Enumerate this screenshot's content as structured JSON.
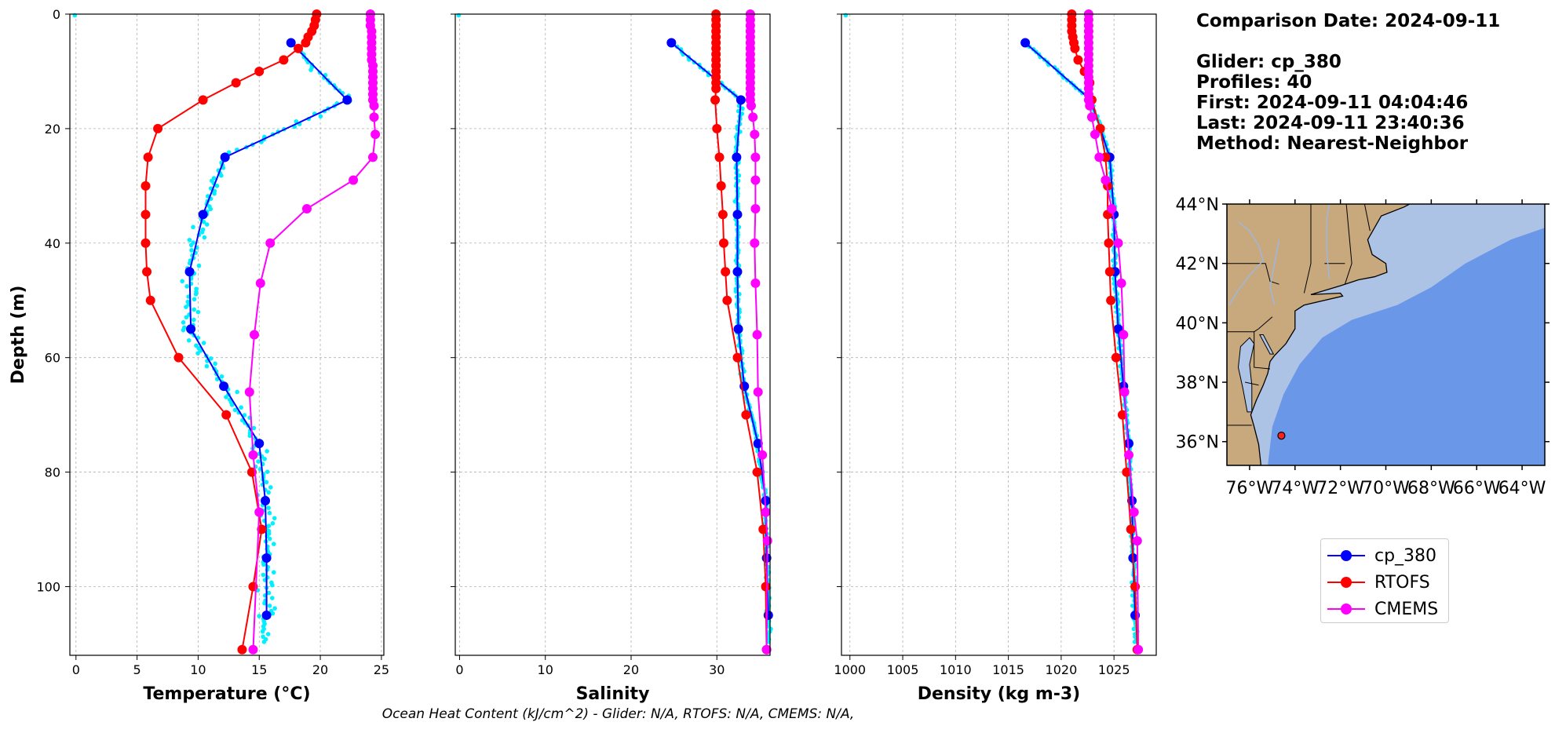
{
  "info": {
    "comparison": "Comparison Date: 2024-09-11",
    "glider": "Glider: cp_380",
    "profiles": "Profiles: 40",
    "first": "First: 2024-09-11 04:04:46",
    "last": "Last: 2024-09-11 23:40:36",
    "method": "Method: Nearest-Neighbor"
  },
  "footer": "Ocean Heat Content (kJ/cm^2) - Glider: N/A,  RTOFS: N/A,  CMEMS: N/A,",
  "legend": [
    {
      "label": "cp_380",
      "color": "#0000ff"
    },
    {
      "label": "RTOFS",
      "color": "#ff0000"
    },
    {
      "label": "CMEMS",
      "color": "#ff00ff"
    }
  ],
  "map": {
    "lat_ticks": [
      "44°N",
      "42°N",
      "40°N",
      "38°N",
      "36°N"
    ],
    "lon_ticks": [
      "76°W",
      "74°W",
      "72°W",
      "70°W",
      "68°W",
      "66°W",
      "64°W"
    ],
    "marker": {
      "lon": -74.6,
      "lat": 36.2
    },
    "land_color": "#c8a97e",
    "shelf_color": "#adc3e6",
    "deep_color": "#6b97e8"
  },
  "chart_data": [
    {
      "type": "line",
      "xlabel": "Temperature (°C)",
      "ylabel": "Depth (m)",
      "xlim": [
        -0.5,
        25.2
      ],
      "ylim": [
        112,
        0
      ],
      "xticks": [
        0,
        5,
        10,
        15,
        20,
        25
      ],
      "yticks": [
        0,
        20,
        40,
        60,
        80,
        100
      ],
      "grid": true,
      "series": [
        {
          "name": "cp_380",
          "color": "#0000ff",
          "points": [
            [
              17.6,
              5
            ],
            [
              22.2,
              15
            ],
            [
              12.2,
              25
            ],
            [
              10.4,
              35
            ],
            [
              9.3,
              45
            ],
            [
              9.4,
              55
            ],
            [
              12.1,
              65
            ],
            [
              15.0,
              75
            ],
            [
              15.5,
              85
            ],
            [
              15.6,
              95
            ],
            [
              15.6,
              105
            ]
          ]
        },
        {
          "name": "RTOFS",
          "color": "#ff0000",
          "points": [
            [
              19.7,
              0
            ],
            [
              19.6,
              1
            ],
            [
              19.5,
              2
            ],
            [
              19.3,
              3
            ],
            [
              19.0,
              4
            ],
            [
              18.8,
              5
            ],
            [
              18.2,
              6
            ],
            [
              17.0,
              8
            ],
            [
              15.0,
              10
            ],
            [
              13.1,
              12
            ],
            [
              10.4,
              15
            ],
            [
              6.7,
              20
            ],
            [
              5.9,
              25
            ],
            [
              5.7,
              30
            ],
            [
              5.7,
              35
            ],
            [
              5.7,
              40
            ],
            [
              5.8,
              45
            ],
            [
              6.1,
              50
            ],
            [
              8.4,
              60
            ],
            [
              12.3,
              70
            ],
            [
              14.4,
              80
            ],
            [
              15.2,
              90
            ],
            [
              14.5,
              100
            ],
            [
              13.6,
              111
            ]
          ]
        },
        {
          "name": "CMEMS",
          "color": "#ff00ff",
          "points": [
            [
              24.1,
              0
            ],
            [
              24.1,
              1
            ],
            [
              24.1,
              2
            ],
            [
              24.2,
              3
            ],
            [
              24.2,
              4
            ],
            [
              24.2,
              5
            ],
            [
              24.2,
              6
            ],
            [
              24.2,
              7
            ],
            [
              24.2,
              8
            ],
            [
              24.3,
              9
            ],
            [
              24.3,
              10
            ],
            [
              24.3,
              11
            ],
            [
              24.3,
              12
            ],
            [
              24.3,
              13
            ],
            [
              24.3,
              14
            ],
            [
              24.3,
              15
            ],
            [
              24.4,
              16
            ],
            [
              24.4,
              18
            ],
            [
              24.5,
              21
            ],
            [
              24.3,
              25
            ],
            [
              22.7,
              29
            ],
            [
              18.9,
              34
            ],
            [
              15.9,
              40
            ],
            [
              15.1,
              47
            ],
            [
              14.6,
              56
            ],
            [
              14.2,
              66
            ],
            [
              14.5,
              77
            ],
            [
              15.0,
              87
            ],
            [
              14.5,
              111
            ]
          ]
        }
      ],
      "scatter_glider": true
    },
    {
      "type": "line",
      "xlabel": "Salinity",
      "xlim": [
        -0.5,
        36.2
      ],
      "ylim": [
        112,
        0
      ],
      "xticks": [
        0,
        10,
        20,
        30
      ],
      "grid": true,
      "series": [
        {
          "name": "cp_380",
          "color": "#0000ff",
          "points": [
            [
              24.7,
              5
            ],
            [
              32.8,
              15
            ],
            [
              32.3,
              25
            ],
            [
              32.4,
              35
            ],
            [
              32.4,
              45
            ],
            [
              32.5,
              55
            ],
            [
              33.2,
              65
            ],
            [
              34.8,
              75
            ],
            [
              35.7,
              85
            ],
            [
              35.8,
              95
            ],
            [
              36.0,
              105
            ]
          ]
        },
        {
          "name": "RTOFS",
          "color": "#ff0000",
          "points": [
            [
              29.9,
              0
            ],
            [
              29.9,
              1
            ],
            [
              29.9,
              2
            ],
            [
              29.9,
              3
            ],
            [
              29.9,
              4
            ],
            [
              29.9,
              5
            ],
            [
              29.9,
              6
            ],
            [
              29.9,
              7
            ],
            [
              29.9,
              8
            ],
            [
              29.9,
              9
            ],
            [
              29.9,
              10
            ],
            [
              29.9,
              11
            ],
            [
              29.9,
              12
            ],
            [
              29.9,
              13
            ],
            [
              29.8,
              15
            ],
            [
              30.0,
              20
            ],
            [
              30.3,
              25
            ],
            [
              30.5,
              30
            ],
            [
              30.7,
              35
            ],
            [
              30.8,
              40
            ],
            [
              31.0,
              45
            ],
            [
              31.2,
              50
            ],
            [
              32.4,
              60
            ],
            [
              33.4,
              70
            ],
            [
              34.7,
              80
            ],
            [
              35.4,
              90
            ],
            [
              35.7,
              100
            ],
            [
              35.8,
              111
            ]
          ]
        },
        {
          "name": "CMEMS",
          "color": "#ff00ff",
          "points": [
            [
              33.9,
              0
            ],
            [
              33.9,
              1
            ],
            [
              33.9,
              2
            ],
            [
              33.9,
              3
            ],
            [
              33.9,
              4
            ],
            [
              33.9,
              5
            ],
            [
              33.9,
              6
            ],
            [
              33.9,
              7
            ],
            [
              33.9,
              8
            ],
            [
              33.9,
              9
            ],
            [
              33.9,
              10
            ],
            [
              33.9,
              11
            ],
            [
              33.9,
              12
            ],
            [
              33.9,
              13
            ],
            [
              33.9,
              14
            ],
            [
              33.9,
              15
            ],
            [
              34.0,
              16
            ],
            [
              34.2,
              18
            ],
            [
              34.4,
              21
            ],
            [
              34.5,
              25
            ],
            [
              34.5,
              29
            ],
            [
              34.5,
              34
            ],
            [
              34.4,
              40
            ],
            [
              34.5,
              47
            ],
            [
              34.7,
              56
            ],
            [
              34.8,
              66
            ],
            [
              35.3,
              77
            ],
            [
              35.7,
              87
            ],
            [
              35.9,
              92
            ],
            [
              35.8,
              111
            ]
          ]
        }
      ],
      "scatter_glider": true
    },
    {
      "type": "line",
      "xlabel": "Density (kg m-3)",
      "xlim": [
        999.2,
        1029.0
      ],
      "ylim": [
        112,
        0
      ],
      "xticks": [
        1000,
        1005,
        1010,
        1015,
        1020,
        1025
      ],
      "grid": true,
      "series": [
        {
          "name": "cp_380",
          "color": "#0000ff",
          "points": [
            [
              1016.6,
              5
            ],
            [
              1022.8,
              15
            ],
            [
              1024.6,
              25
            ],
            [
              1025.0,
              35
            ],
            [
              1025.1,
              45
            ],
            [
              1025.4,
              55
            ],
            [
              1025.9,
              65
            ],
            [
              1026.4,
              75
            ],
            [
              1026.7,
              85
            ],
            [
              1026.8,
              95
            ],
            [
              1027.0,
              105
            ]
          ]
        },
        {
          "name": "RTOFS",
          "color": "#ff0000",
          "points": [
            [
              1021.0,
              0
            ],
            [
              1021.0,
              1
            ],
            [
              1021.0,
              2
            ],
            [
              1021.0,
              3
            ],
            [
              1021.1,
              4
            ],
            [
              1021.2,
              5
            ],
            [
              1021.3,
              6
            ],
            [
              1021.6,
              8
            ],
            [
              1022.2,
              10
            ],
            [
              1022.7,
              12
            ],
            [
              1022.9,
              15
            ],
            [
              1023.7,
              20
            ],
            [
              1024.2,
              25
            ],
            [
              1024.4,
              30
            ],
            [
              1024.4,
              35
            ],
            [
              1024.5,
              40
            ],
            [
              1024.6,
              45
            ],
            [
              1024.7,
              50
            ],
            [
              1025.2,
              60
            ],
            [
              1025.8,
              70
            ],
            [
              1026.2,
              80
            ],
            [
              1026.6,
              90
            ],
            [
              1027.0,
              100
            ],
            [
              1027.2,
              111
            ]
          ]
        },
        {
          "name": "CMEMS",
          "color": "#ff00ff",
          "points": [
            [
              1022.6,
              0
            ],
            [
              1022.6,
              1
            ],
            [
              1022.6,
              2
            ],
            [
              1022.6,
              3
            ],
            [
              1022.6,
              4
            ],
            [
              1022.6,
              5
            ],
            [
              1022.6,
              6
            ],
            [
              1022.6,
              7
            ],
            [
              1022.6,
              8
            ],
            [
              1022.6,
              9
            ],
            [
              1022.6,
              10
            ],
            [
              1022.6,
              11
            ],
            [
              1022.6,
              12
            ],
            [
              1022.6,
              13
            ],
            [
              1022.6,
              14
            ],
            [
              1022.6,
              15
            ],
            [
              1022.7,
              16
            ],
            [
              1022.9,
              18
            ],
            [
              1023.2,
              21
            ],
            [
              1023.6,
              25
            ],
            [
              1024.2,
              29
            ],
            [
              1024.8,
              34
            ],
            [
              1025.4,
              40
            ],
            [
              1025.7,
              47
            ],
            [
              1025.9,
              56
            ],
            [
              1026.0,
              66
            ],
            [
              1026.4,
              77
            ],
            [
              1026.9,
              87
            ],
            [
              1027.2,
              92
            ],
            [
              1027.3,
              111
            ]
          ]
        }
      ],
      "scatter_glider": true
    }
  ]
}
